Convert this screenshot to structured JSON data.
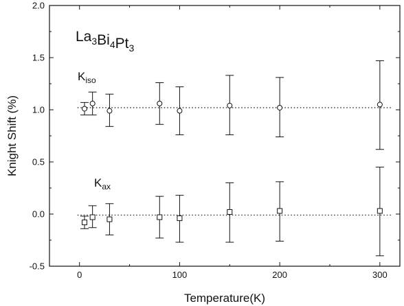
{
  "chart_data": {
    "type": "scatter",
    "xlabel": "Temperature(K)",
    "ylabel": "Knight Shift (%)",
    "xlim": [
      -30,
      320
    ],
    "ylim": [
      -0.5,
      2.0
    ],
    "x_ticks": [
      0,
      100,
      200,
      300
    ],
    "y_ticks": [
      -0.5,
      0.0,
      0.5,
      1.0,
      1.5,
      2.0
    ],
    "x_tick_labels": [
      "0",
      "100",
      "200",
      "300"
    ],
    "y_tick_labels": [
      "-0.5",
      "0.0",
      "0.5",
      "1.0",
      "1.5",
      "2.0"
    ],
    "grid": false,
    "title_annotation": {
      "base": [
        "La",
        "Bi",
        "Pt"
      ],
      "subs": [
        "3",
        "4",
        "3"
      ]
    },
    "series": [
      {
        "label": {
          "main": "K",
          "sub": "iso"
        },
        "marker": "circle",
        "reference_line": 1.02,
        "x": [
          5,
          13,
          30,
          80,
          100,
          150,
          200,
          300
        ],
        "y": [
          1.01,
          1.06,
          0.99,
          1.06,
          0.99,
          1.04,
          1.02,
          1.05
        ],
        "err_low": [
          0.95,
          0.95,
          0.84,
          0.86,
          0.76,
          0.76,
          0.74,
          0.62
        ],
        "err_high": [
          1.07,
          1.17,
          1.15,
          1.26,
          1.22,
          1.33,
          1.31,
          1.47
        ]
      },
      {
        "label": {
          "main": "K",
          "sub": "ax"
        },
        "marker": "square",
        "reference_line": -0.01,
        "x": [
          5,
          13,
          30,
          80,
          100,
          150,
          200,
          300
        ],
        "y": [
          -0.08,
          -0.03,
          -0.05,
          -0.03,
          -0.04,
          0.02,
          0.03,
          0.03
        ],
        "err_low": [
          -0.14,
          -0.13,
          -0.2,
          -0.23,
          -0.27,
          -0.27,
          -0.26,
          -0.4
        ],
        "err_high": [
          -0.02,
          0.08,
          0.1,
          0.17,
          0.18,
          0.3,
          0.31,
          0.45
        ]
      }
    ]
  }
}
